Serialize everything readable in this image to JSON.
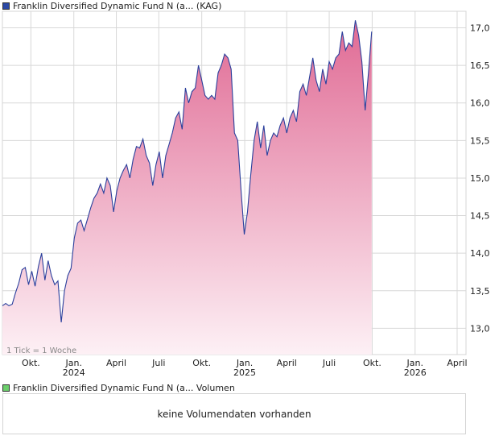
{
  "legend": {
    "price_label": "Franklin Diversified Dynamic Fund N (a... (KAG)",
    "volume_label": "Franklin Diversified Dynamic Fund N (a... Volumen"
  },
  "colors": {
    "line": "#2a3f9c",
    "fill_top": "#e06a94",
    "fill_bottom": "#fdf0f5",
    "price_swatch": "#2b49a6",
    "volume_swatch": "#6ccf6c",
    "grid": "#d8d8d8"
  },
  "tick_note": "1 Tick = 1 Woche",
  "volume_message": "keine Volumendaten vorhanden",
  "chart_data": {
    "type": "area",
    "y_axis_side": "right",
    "ylim": [
      12.65,
      17.22
    ],
    "y_ticks": [
      13.0,
      13.5,
      14.0,
      14.5,
      15.0,
      15.5,
      16.0,
      16.5,
      17.0
    ],
    "y_tick_labels": [
      "13,0",
      "13,5",
      "14,0",
      "14,5",
      "15,0",
      "15,5",
      "16,0",
      "16,5",
      "17,0"
    ],
    "x_range": [
      "2023-08-01",
      "2026-04-20"
    ],
    "x_ticks": [
      {
        "date": "2023-10-01",
        "label": "Okt.",
        "year": ""
      },
      {
        "date": "2024-01-01",
        "label": "Jan.",
        "year": "2024"
      },
      {
        "date": "2024-04-01",
        "label": "April",
        "year": ""
      },
      {
        "date": "2024-07-01",
        "label": "Juli",
        "year": ""
      },
      {
        "date": "2024-10-01",
        "label": "Okt.",
        "year": ""
      },
      {
        "date": "2025-01-01",
        "label": "Jan.",
        "year": "2025"
      },
      {
        "date": "2025-04-01",
        "label": "April",
        "year": ""
      },
      {
        "date": "2025-07-01",
        "label": "Juli",
        "year": ""
      },
      {
        "date": "2025-10-01",
        "label": "Okt.",
        "year": ""
      },
      {
        "date": "2026-01-01",
        "label": "Jan.",
        "year": "2026"
      },
      {
        "date": "2026-04-01",
        "label": "April",
        "year": ""
      }
    ],
    "grid": true,
    "series": [
      {
        "points": [
          [
            "2023-08-01",
            13.3
          ],
          [
            "2023-08-08",
            13.33
          ],
          [
            "2023-08-15",
            13.3
          ],
          [
            "2023-08-22",
            13.32
          ],
          [
            "2023-08-29",
            13.47
          ],
          [
            "2023-09-05",
            13.6
          ],
          [
            "2023-09-12",
            13.78
          ],
          [
            "2023-09-19",
            13.81
          ],
          [
            "2023-09-26",
            13.58
          ],
          [
            "2023-10-03",
            13.76
          ],
          [
            "2023-10-10",
            13.56
          ],
          [
            "2023-10-17",
            13.82
          ],
          [
            "2023-10-24",
            14.0
          ],
          [
            "2023-10-31",
            13.64
          ],
          [
            "2023-11-07",
            13.9
          ],
          [
            "2023-11-14",
            13.7
          ],
          [
            "2023-11-21",
            13.58
          ],
          [
            "2023-11-28",
            13.63
          ],
          [
            "2023-12-05",
            13.08
          ],
          [
            "2023-12-12",
            13.5
          ],
          [
            "2023-12-19",
            13.7
          ],
          [
            "2023-12-26",
            13.8
          ],
          [
            "2024-01-02",
            14.2
          ],
          [
            "2024-01-09",
            14.4
          ],
          [
            "2024-01-16",
            14.44
          ],
          [
            "2024-01-23",
            14.3
          ],
          [
            "2024-01-30",
            14.45
          ],
          [
            "2024-02-06",
            14.6
          ],
          [
            "2024-02-13",
            14.73
          ],
          [
            "2024-02-20",
            14.8
          ],
          [
            "2024-02-27",
            14.92
          ],
          [
            "2024-03-05",
            14.8
          ],
          [
            "2024-03-12",
            15.0
          ],
          [
            "2024-03-19",
            14.9
          ],
          [
            "2024-03-26",
            14.55
          ],
          [
            "2024-04-02",
            14.83
          ],
          [
            "2024-04-09",
            15.0
          ],
          [
            "2024-04-16",
            15.1
          ],
          [
            "2024-04-23",
            15.18
          ],
          [
            "2024-04-30",
            15.0
          ],
          [
            "2024-05-07",
            15.25
          ],
          [
            "2024-05-14",
            15.42
          ],
          [
            "2024-05-21",
            15.4
          ],
          [
            "2024-05-28",
            15.52
          ],
          [
            "2024-06-04",
            15.3
          ],
          [
            "2024-06-11",
            15.2
          ],
          [
            "2024-06-18",
            14.9
          ],
          [
            "2024-06-25",
            15.18
          ],
          [
            "2024-07-02",
            15.35
          ],
          [
            "2024-07-09",
            15.0
          ],
          [
            "2024-07-16",
            15.3
          ],
          [
            "2024-07-23",
            15.45
          ],
          [
            "2024-07-30",
            15.6
          ],
          [
            "2024-08-06",
            15.8
          ],
          [
            "2024-08-13",
            15.88
          ],
          [
            "2024-08-20",
            15.65
          ],
          [
            "2024-08-27",
            16.2
          ],
          [
            "2024-09-03",
            16.0
          ],
          [
            "2024-09-10",
            16.15
          ],
          [
            "2024-09-17",
            16.2
          ],
          [
            "2024-09-24",
            16.5
          ],
          [
            "2024-10-01",
            16.3
          ],
          [
            "2024-10-08",
            16.1
          ],
          [
            "2024-10-15",
            16.05
          ],
          [
            "2024-10-22",
            16.1
          ],
          [
            "2024-10-29",
            16.05
          ],
          [
            "2024-11-05",
            16.4
          ],
          [
            "2024-11-12",
            16.5
          ],
          [
            "2024-11-19",
            16.65
          ],
          [
            "2024-11-26",
            16.6
          ],
          [
            "2024-12-03",
            16.45
          ],
          [
            "2024-12-10",
            15.6
          ],
          [
            "2024-12-17",
            15.5
          ],
          [
            "2024-12-24",
            14.85
          ],
          [
            "2024-12-31",
            14.25
          ],
          [
            "2025-01-07",
            14.55
          ],
          [
            "2025-01-14",
            15.05
          ],
          [
            "2025-01-21",
            15.5
          ],
          [
            "2025-01-28",
            15.75
          ],
          [
            "2025-02-04",
            15.4
          ],
          [
            "2025-02-11",
            15.7
          ],
          [
            "2025-02-18",
            15.3
          ],
          [
            "2025-02-25",
            15.5
          ],
          [
            "2025-03-04",
            15.6
          ],
          [
            "2025-03-11",
            15.55
          ],
          [
            "2025-03-18",
            15.7
          ],
          [
            "2025-03-25",
            15.8
          ],
          [
            "2025-04-01",
            15.6
          ],
          [
            "2025-04-08",
            15.8
          ],
          [
            "2025-04-15",
            15.9
          ],
          [
            "2025-04-22",
            15.75
          ],
          [
            "2025-04-29",
            16.15
          ],
          [
            "2025-05-06",
            16.25
          ],
          [
            "2025-05-13",
            16.1
          ],
          [
            "2025-05-20",
            16.35
          ],
          [
            "2025-05-27",
            16.6
          ],
          [
            "2025-06-03",
            16.3
          ],
          [
            "2025-06-10",
            16.15
          ],
          [
            "2025-06-17",
            16.45
          ],
          [
            "2025-06-24",
            16.25
          ],
          [
            "2025-07-01",
            16.55
          ],
          [
            "2025-07-08",
            16.45
          ],
          [
            "2025-07-15",
            16.6
          ],
          [
            "2025-07-22",
            16.65
          ],
          [
            "2025-07-29",
            16.95
          ],
          [
            "2025-08-05",
            16.7
          ],
          [
            "2025-08-12",
            16.8
          ],
          [
            "2025-08-19",
            16.75
          ],
          [
            "2025-08-26",
            17.1
          ],
          [
            "2025-09-02",
            16.9
          ],
          [
            "2025-09-09",
            16.55
          ],
          [
            "2025-09-16",
            15.9
          ],
          [
            "2025-09-23",
            16.4
          ],
          [
            "2025-09-30",
            16.95
          ]
        ]
      }
    ]
  }
}
